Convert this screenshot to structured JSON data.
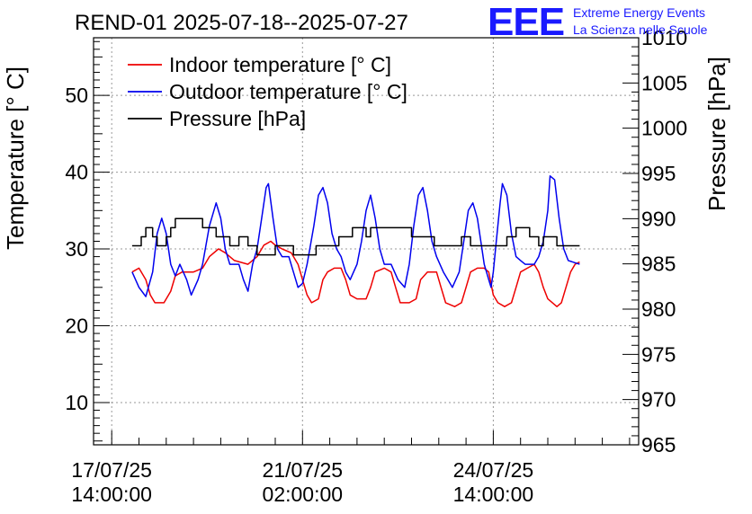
{
  "chart_data": {
    "type": "line",
    "title": "REND-01 2025-07-18--2025-07-27",
    "brand": {
      "logo_text": "EEE",
      "line1": "Extreme Energy Events",
      "line2": "La Scienza nelle Scuole",
      "color": "#1a1aff"
    },
    "ylabel_left": "Temperature [° C]",
    "ylabel_right": "Pressure [hPa]",
    "y_left_range": [
      4.5,
      57.5
    ],
    "y_left_ticks": [
      10,
      20,
      30,
      40,
      50
    ],
    "y_right_range": [
      965,
      1010
    ],
    "y_right_ticks": [
      965,
      970,
      975,
      980,
      985,
      990,
      995,
      1000,
      1005,
      1010
    ],
    "x_range_hours": [
      -8,
      232
    ],
    "x_ticks": [
      {
        "hours": 0,
        "line1": "17/07/25",
        "line2": "14:00:00"
      },
      {
        "hours": 84,
        "line1": "21/07/25",
        "line2": "02:00:00"
      },
      {
        "hours": 168,
        "line1": "24/07/25",
        "line2": "14:00:00"
      }
    ],
    "grid": true,
    "legend": {
      "placement": "top-left"
    },
    "series": [
      {
        "name": "Indoor temperature [° C]",
        "color": "#ee0000",
        "axis": "left",
        "points": [
          [
            9,
            27
          ],
          [
            12,
            27.5
          ],
          [
            15,
            26
          ],
          [
            17,
            24
          ],
          [
            19,
            23
          ],
          [
            23,
            23
          ],
          [
            26,
            24.5
          ],
          [
            28,
            26.5
          ],
          [
            31,
            27
          ],
          [
            34,
            27
          ],
          [
            36,
            27
          ],
          [
            40,
            27.5
          ],
          [
            43,
            29
          ],
          [
            47,
            30
          ],
          [
            50,
            29.5
          ],
          [
            54,
            28.5
          ],
          [
            60,
            28
          ],
          [
            64,
            29
          ],
          [
            67,
            30.5
          ],
          [
            70,
            31
          ],
          [
            72,
            30.5
          ],
          [
            75,
            30
          ],
          [
            79,
            29.5
          ],
          [
            82,
            28
          ],
          [
            84,
            26
          ],
          [
            86,
            24
          ],
          [
            88,
            23
          ],
          [
            91,
            23.5
          ],
          [
            93,
            26
          ],
          [
            95,
            27
          ],
          [
            98,
            27.5
          ],
          [
            101,
            27.5
          ],
          [
            103,
            26
          ],
          [
            105,
            24
          ],
          [
            108,
            23.5
          ],
          [
            112,
            23.5
          ],
          [
            114,
            25
          ],
          [
            116,
            27
          ],
          [
            120,
            27.5
          ],
          [
            123,
            27
          ],
          [
            125,
            25
          ],
          [
            127,
            23
          ],
          [
            131,
            23
          ],
          [
            134,
            23.5
          ],
          [
            136,
            26
          ],
          [
            139,
            27
          ],
          [
            143,
            27
          ],
          [
            145,
            25
          ],
          [
            147,
            23
          ],
          [
            151,
            22.5
          ],
          [
            154,
            23
          ],
          [
            156,
            25
          ],
          [
            158,
            27
          ],
          [
            161,
            27.5
          ],
          [
            164,
            27.5
          ],
          [
            166,
            27
          ],
          [
            168,
            24
          ],
          [
            170,
            23
          ],
          [
            173,
            22.5
          ],
          [
            176,
            23
          ],
          [
            178,
            25
          ],
          [
            180,
            27
          ],
          [
            183,
            27.5
          ],
          [
            186,
            28
          ],
          [
            188,
            27
          ],
          [
            190,
            25
          ],
          [
            192,
            23.5
          ],
          [
            196,
            22.5
          ],
          [
            198,
            23
          ],
          [
            200,
            25
          ],
          [
            202,
            27
          ],
          [
            204,
            28
          ],
          [
            206,
            28.3
          ]
        ]
      },
      {
        "name": "Outdoor temperature [° C]",
        "color": "#0000ee",
        "axis": "left",
        "points": [
          [
            9,
            27
          ],
          [
            12,
            25
          ],
          [
            15,
            23.8
          ],
          [
            18,
            27
          ],
          [
            20,
            32
          ],
          [
            22,
            34
          ],
          [
            24,
            32
          ],
          [
            26,
            28
          ],
          [
            28,
            26.5
          ],
          [
            30,
            28
          ],
          [
            33,
            26
          ],
          [
            35,
            24
          ],
          [
            38,
            26
          ],
          [
            40,
            28
          ],
          [
            43,
            33
          ],
          [
            46,
            36
          ],
          [
            48,
            34
          ],
          [
            50,
            30
          ],
          [
            52,
            28
          ],
          [
            56,
            28
          ],
          [
            58,
            26
          ],
          [
            60,
            24.5
          ],
          [
            62,
            28
          ],
          [
            64,
            30
          ],
          [
            66,
            34
          ],
          [
            68,
            38
          ],
          [
            69,
            38.5
          ],
          [
            71,
            34
          ],
          [
            73,
            30
          ],
          [
            75,
            29
          ],
          [
            78,
            29
          ],
          [
            80,
            27
          ],
          [
            82,
            25
          ],
          [
            84,
            25.5
          ],
          [
            86,
            28
          ],
          [
            89,
            33
          ],
          [
            91,
            37
          ],
          [
            93,
            38
          ],
          [
            95,
            36
          ],
          [
            97,
            32
          ],
          [
            99,
            30
          ],
          [
            101,
            29
          ],
          [
            103,
            27
          ],
          [
            105,
            26
          ],
          [
            108,
            28
          ],
          [
            110,
            31
          ],
          [
            112,
            35
          ],
          [
            114,
            37
          ],
          [
            116,
            34
          ],
          [
            118,
            30
          ],
          [
            120,
            28
          ],
          [
            123,
            28
          ],
          [
            126,
            26
          ],
          [
            129,
            25
          ],
          [
            131,
            28
          ],
          [
            133,
            33
          ],
          [
            135,
            37
          ],
          [
            137,
            38
          ],
          [
            139,
            35
          ],
          [
            141,
            31
          ],
          [
            143,
            29
          ],
          [
            146,
            27
          ],
          [
            148,
            26
          ],
          [
            150,
            25
          ],
          [
            153,
            27
          ],
          [
            155,
            31
          ],
          [
            157,
            35
          ],
          [
            159,
            36
          ],
          [
            161,
            34
          ],
          [
            163,
            30
          ],
          [
            164,
            28
          ],
          [
            166,
            26
          ],
          [
            167,
            25
          ],
          [
            168,
            27
          ],
          [
            169,
            30
          ],
          [
            171,
            36
          ],
          [
            172,
            38.5
          ],
          [
            174,
            37
          ],
          [
            176,
            32
          ],
          [
            178,
            29
          ],
          [
            180,
            28.5
          ],
          [
            182,
            28
          ],
          [
            184,
            28
          ],
          [
            186,
            28
          ],
          [
            188,
            29
          ],
          [
            190,
            31
          ],
          [
            192,
            35
          ],
          [
            193,
            39.5
          ],
          [
            195,
            39
          ],
          [
            197,
            34
          ],
          [
            199,
            30
          ],
          [
            201,
            28.5
          ],
          [
            204,
            28.2
          ],
          [
            206,
            28
          ]
        ]
      },
      {
        "name": "Pressure [hPa]",
        "color": "#000000",
        "axis": "right",
        "points": [
          [
            9,
            987
          ],
          [
            13,
            987
          ],
          [
            13,
            988
          ],
          [
            15,
            988
          ],
          [
            15,
            989
          ],
          [
            18,
            989
          ],
          [
            18,
            988
          ],
          [
            20,
            988
          ],
          [
            20,
            987
          ],
          [
            24,
            987
          ],
          [
            24,
            988
          ],
          [
            26,
            988
          ],
          [
            26,
            989
          ],
          [
            28,
            989
          ],
          [
            28,
            990
          ],
          [
            40,
            990
          ],
          [
            40,
            989
          ],
          [
            46,
            989
          ],
          [
            46,
            988
          ],
          [
            52,
            988
          ],
          [
            52,
            987
          ],
          [
            56,
            987
          ],
          [
            56,
            988
          ],
          [
            60,
            988
          ],
          [
            60,
            987
          ],
          [
            64,
            987
          ],
          [
            64,
            986
          ],
          [
            72,
            986
          ],
          [
            72,
            987
          ],
          [
            80,
            987
          ],
          [
            80,
            986
          ],
          [
            90,
            986
          ],
          [
            90,
            987
          ],
          [
            100,
            987
          ],
          [
            100,
            988
          ],
          [
            106,
            988
          ],
          [
            106,
            989
          ],
          [
            112,
            989
          ],
          [
            112,
            988
          ],
          [
            114,
            988
          ],
          [
            114,
            989
          ],
          [
            132,
            989
          ],
          [
            132,
            988
          ],
          [
            142,
            988
          ],
          [
            142,
            987
          ],
          [
            154,
            987
          ],
          [
            154,
            988
          ],
          [
            158,
            988
          ],
          [
            158,
            987
          ],
          [
            174,
            987
          ],
          [
            174,
            988
          ],
          [
            178,
            988
          ],
          [
            178,
            989
          ],
          [
            184,
            989
          ],
          [
            184,
            988
          ],
          [
            188,
            988
          ],
          [
            188,
            987
          ],
          [
            190,
            987
          ],
          [
            190,
            988
          ],
          [
            196,
            988
          ],
          [
            196,
            987
          ],
          [
            206,
            987
          ]
        ]
      }
    ]
  }
}
